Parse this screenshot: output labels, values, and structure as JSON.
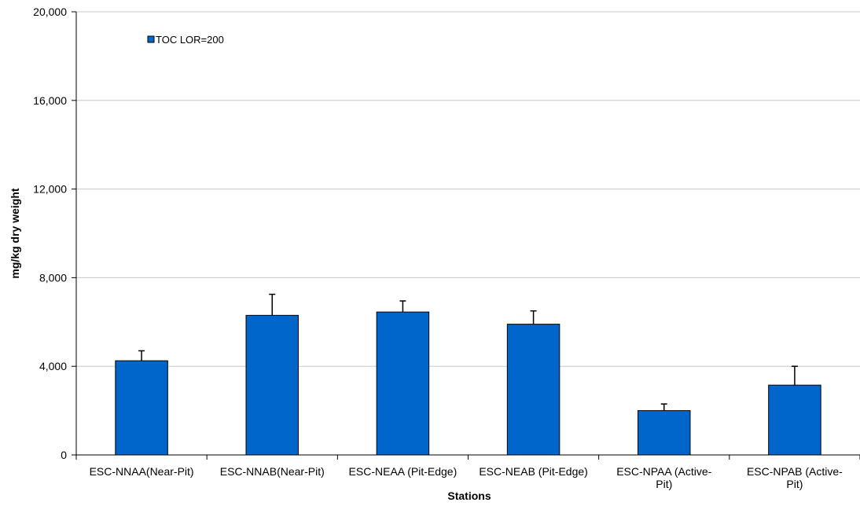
{
  "chart_data": {
    "type": "bar",
    "title": "",
    "xlabel": "Stations",
    "ylabel": "mg/kg dry weight",
    "ylim": [
      0,
      20000
    ],
    "yticks": [
      0,
      4000,
      8000,
      12000,
      16000,
      20000
    ],
    "ytick_labels": [
      "0",
      "4,000",
      "8,000",
      "12,000",
      "16,000",
      "20,000"
    ],
    "grid": true,
    "legend_position": "top-left",
    "categories": [
      [
        "ESC-NNAA(Near-Pit)"
      ],
      [
        "ESC-NNAB(Near-Pit)"
      ],
      [
        "ESC-NEAA (Pit-Edge)"
      ],
      [
        "ESC-NEAB (Pit-Edge)"
      ],
      [
        "ESC-NPAA (Active-",
        "Pit)"
      ],
      [
        "ESC-NPAB (Active-",
        "Pit)"
      ]
    ],
    "series": [
      {
        "name": "TOC LOR=200",
        "color": "#0066cc",
        "values": [
          4250,
          6300,
          6450,
          5900,
          2000,
          3150
        ],
        "error_upper": [
          4700,
          7250,
          6950,
          6500,
          2300,
          4000
        ]
      }
    ]
  }
}
